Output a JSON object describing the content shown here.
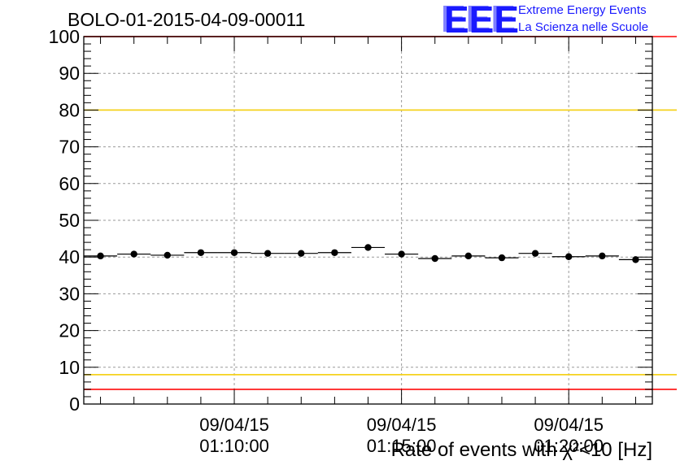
{
  "chart_data": {
    "type": "scatter",
    "title": "BOLO-01-2015-04-09-00011",
    "ylabel": "Rate of events with χ²<10 [Hz]",
    "ylim": [
      0,
      100
    ],
    "yticks": [
      "0",
      "10",
      "20",
      "30",
      "40",
      "50",
      "60",
      "70",
      "80",
      "90",
      "100"
    ],
    "xticks": [
      {
        "date": "09/04/15",
        "time": "01:10:00"
      },
      {
        "date": "09/04/15",
        "time": "01:15:00"
      },
      {
        "date": "09/04/15",
        "time": "01:20:00"
      }
    ],
    "grid": true,
    "x": [
      "01:06:00",
      "01:07:00",
      "01:08:00",
      "01:09:00",
      "01:10:00",
      "01:11:00",
      "01:12:00",
      "01:13:00",
      "01:14:00",
      "01:15:00",
      "01:16:00",
      "01:17:00",
      "01:18:00",
      "01:19:00",
      "01:20:00",
      "01:21:00",
      "01:22:00"
    ],
    "values": [
      40.3,
      40.8,
      40.5,
      41.2,
      41.2,
      41.0,
      41.0,
      41.2,
      42.6,
      40.8,
      39.6,
      40.3,
      39.8,
      41.0,
      40.1,
      40.3,
      39.3
    ],
    "reference_lines": [
      {
        "value": 80,
        "color": "#f5d21e"
      },
      {
        "value": 8,
        "color": "#f5d21e"
      },
      {
        "value": 4,
        "color": "#ff2a2a"
      },
      {
        "value": 100,
        "color": "#ff2a2a"
      }
    ]
  },
  "logo": {
    "mark": "EEE",
    "line1": "Extreme Energy Events",
    "line2": "La Scienza nelle Scuole",
    "color": "#1a1aff"
  }
}
